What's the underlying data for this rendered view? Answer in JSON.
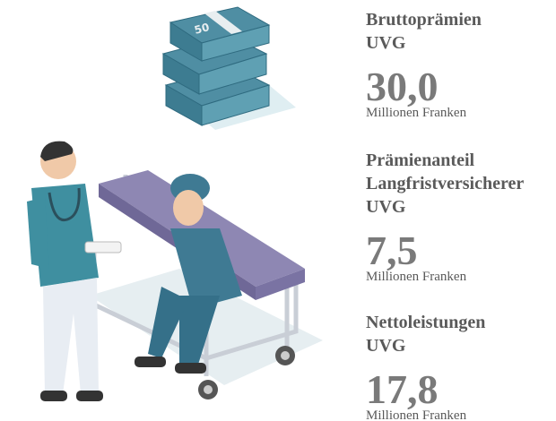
{
  "stats": [
    {
      "label_lines": [
        "Bruttoprämien",
        "UVG"
      ],
      "value": "30,0",
      "unit": "Millionen Franken"
    },
    {
      "label_lines": [
        "Prämienanteil",
        "Langfristversicherer",
        "UVG"
      ],
      "value": "7,5",
      "unit": "Millionen Franken"
    },
    {
      "label_lines": [
        "Nettoleistungen",
        "UVG"
      ],
      "value": "17,8",
      "unit": "Millionen Franken"
    }
  ],
  "illustration": {
    "banknote_label": "50"
  }
}
